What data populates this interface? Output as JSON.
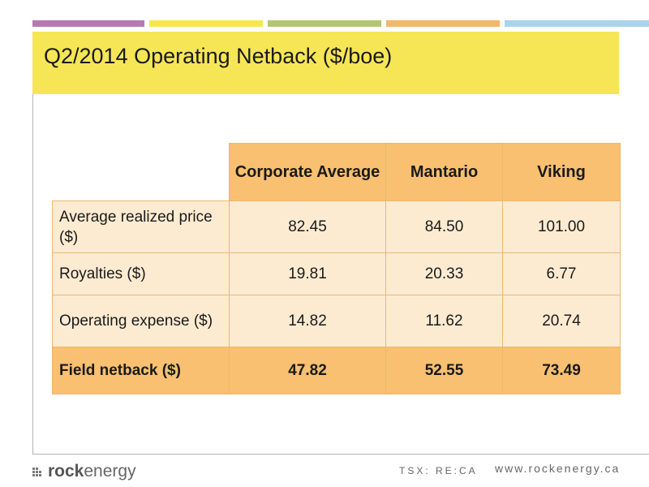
{
  "slide": {
    "title": "Q2/2014 Operating Netback ($/boe)",
    "accent_colors": [
      "#b57ab3",
      "#f6e655",
      "#b3c673",
      "#f4b66a",
      "#a9d3ea"
    ]
  },
  "table": {
    "columns": [
      "Corporate Average",
      "Mantario",
      "Viking"
    ],
    "rows": [
      {
        "label": "Average realized price ($)",
        "values": [
          "82.45",
          "84.50",
          "101.00"
        ]
      },
      {
        "label": "Royalties ($)",
        "values": [
          "19.81",
          "20.33",
          "6.77"
        ]
      },
      {
        "label": "Operating expense ($)",
        "values": [
          "14.82",
          "11.62",
          "20.74"
        ]
      },
      {
        "label": "Field netback  ($)",
        "values": [
          "47.82",
          "52.55",
          "73.49"
        ]
      }
    ]
  },
  "footer": {
    "logo_bold": "rock",
    "logo_light": "energy",
    "ticker": "TSX: RE:CA",
    "website": "www.rockenergy.ca"
  }
}
